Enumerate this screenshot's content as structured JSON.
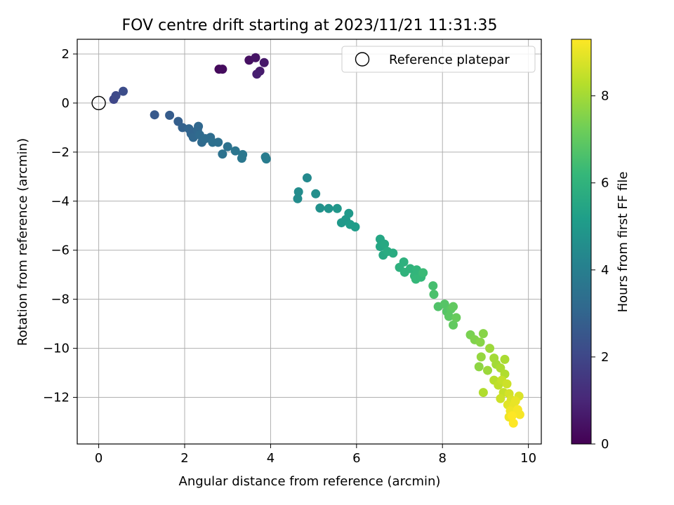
{
  "chart_data": {
    "type": "scatter",
    "title": "FOV centre drift starting at 2023/11/21 11:31:35",
    "xlabel": "Angular distance from reference (arcmin)",
    "ylabel": "Rotation from reference (arcmin)",
    "xlim": [
      -0.5,
      10.3
    ],
    "ylim": [
      -13.9,
      2.6
    ],
    "xticks": [
      0,
      2,
      4,
      6,
      8,
      10
    ],
    "yticks": [
      2,
      0,
      -2,
      -4,
      -6,
      -8,
      -10,
      -12
    ],
    "grid": true,
    "legend": {
      "position": "top-right",
      "label": "Reference platepar"
    },
    "reference_point": {
      "x": 0,
      "y": 0
    },
    "colorbar": {
      "label": "Hours from first FF file",
      "range": [
        0,
        9.3
      ],
      "ticks": [
        0,
        2,
        4,
        6,
        8
      ],
      "colormap": [
        "#440154",
        "#482878",
        "#3e4989",
        "#31688e",
        "#26828e",
        "#1f9e89",
        "#35b779",
        "#6ece58",
        "#b5de2b",
        "#fde725"
      ]
    },
    "points": [
      {
        "x": 2.8,
        "y": 1.38,
        "t": 0.2
      },
      {
        "x": 2.88,
        "y": 1.38,
        "t": 0.3
      },
      {
        "x": 3.5,
        "y": 1.75,
        "t": 0.4
      },
      {
        "x": 3.65,
        "y": 1.85,
        "t": 0.5
      },
      {
        "x": 3.85,
        "y": 1.65,
        "t": 0.6
      },
      {
        "x": 3.75,
        "y": 1.3,
        "t": 0.7
      },
      {
        "x": 3.68,
        "y": 1.18,
        "t": 0.8
      },
      {
        "x": 0.35,
        "y": 0.15,
        "t": 2.0
      },
      {
        "x": 0.4,
        "y": 0.3,
        "t": 2.1
      },
      {
        "x": 0.57,
        "y": 0.48,
        "t": 2.2
      },
      {
        "x": 1.3,
        "y": -0.48,
        "t": 2.6
      },
      {
        "x": 1.65,
        "y": -0.5,
        "t": 2.7
      },
      {
        "x": 1.85,
        "y": -0.75,
        "t": 2.8
      },
      {
        "x": 1.95,
        "y": -1.0,
        "t": 2.9
      },
      {
        "x": 2.1,
        "y": -1.05,
        "t": 3.0
      },
      {
        "x": 2.15,
        "y": -1.25,
        "t": 3.0
      },
      {
        "x": 2.2,
        "y": -1.4,
        "t": 3.1
      },
      {
        "x": 2.3,
        "y": -1.1,
        "t": 3.1
      },
      {
        "x": 2.32,
        "y": -0.95,
        "t": 3.1
      },
      {
        "x": 2.35,
        "y": -1.3,
        "t": 3.2
      },
      {
        "x": 2.4,
        "y": -1.6,
        "t": 3.2
      },
      {
        "x": 2.48,
        "y": -1.45,
        "t": 3.3
      },
      {
        "x": 2.6,
        "y": -1.4,
        "t": 3.3
      },
      {
        "x": 2.65,
        "y": -1.6,
        "t": 3.4
      },
      {
        "x": 2.78,
        "y": -1.6,
        "t": 3.4
      },
      {
        "x": 2.88,
        "y": -2.08,
        "t": 3.5
      },
      {
        "x": 3.0,
        "y": -1.78,
        "t": 3.5
      },
      {
        "x": 3.18,
        "y": -1.95,
        "t": 3.6
      },
      {
        "x": 3.35,
        "y": -2.1,
        "t": 3.7
      },
      {
        "x": 3.33,
        "y": -2.25,
        "t": 3.7
      },
      {
        "x": 3.88,
        "y": -2.2,
        "t": 3.9
      },
      {
        "x": 3.9,
        "y": -2.28,
        "t": 3.9
      },
      {
        "x": 4.85,
        "y": -3.05,
        "t": 4.4
      },
      {
        "x": 4.65,
        "y": -3.62,
        "t": 4.5
      },
      {
        "x": 4.63,
        "y": -3.9,
        "t": 4.5
      },
      {
        "x": 5.05,
        "y": -3.7,
        "t": 4.6
      },
      {
        "x": 5.15,
        "y": -4.28,
        "t": 4.7
      },
      {
        "x": 5.35,
        "y": -4.3,
        "t": 4.8
      },
      {
        "x": 5.55,
        "y": -4.3,
        "t": 4.9
      },
      {
        "x": 5.65,
        "y": -4.88,
        "t": 5.0
      },
      {
        "x": 5.75,
        "y": -4.75,
        "t": 5.0
      },
      {
        "x": 5.82,
        "y": -4.5,
        "t": 5.0
      },
      {
        "x": 5.85,
        "y": -4.95,
        "t": 5.1
      },
      {
        "x": 5.97,
        "y": -5.05,
        "t": 5.1
      },
      {
        "x": 6.55,
        "y": -5.55,
        "t": 5.5
      },
      {
        "x": 6.55,
        "y": -5.85,
        "t": 5.5
      },
      {
        "x": 6.65,
        "y": -5.75,
        "t": 5.6
      },
      {
        "x": 6.62,
        "y": -6.2,
        "t": 5.6
      },
      {
        "x": 6.72,
        "y": -6.05,
        "t": 5.7
      },
      {
        "x": 6.85,
        "y": -6.12,
        "t": 5.7
      },
      {
        "x": 7.0,
        "y": -6.7,
        "t": 5.9
      },
      {
        "x": 7.1,
        "y": -6.48,
        "t": 5.9
      },
      {
        "x": 7.12,
        "y": -6.9,
        "t": 6.0
      },
      {
        "x": 7.25,
        "y": -6.75,
        "t": 6.0
      },
      {
        "x": 7.35,
        "y": -7.05,
        "t": 6.1
      },
      {
        "x": 7.4,
        "y": -6.8,
        "t": 6.1
      },
      {
        "x": 7.38,
        "y": -7.18,
        "t": 6.2
      },
      {
        "x": 7.5,
        "y": -7.1,
        "t": 6.2
      },
      {
        "x": 7.55,
        "y": -6.92,
        "t": 6.3
      },
      {
        "x": 7.78,
        "y": -7.45,
        "t": 6.5
      },
      {
        "x": 7.8,
        "y": -7.8,
        "t": 6.6
      },
      {
        "x": 7.9,
        "y": -8.3,
        "t": 6.7
      },
      {
        "x": 8.05,
        "y": -8.2,
        "t": 6.8
      },
      {
        "x": 8.1,
        "y": -8.5,
        "t": 6.8
      },
      {
        "x": 8.15,
        "y": -8.7,
        "t": 6.9
      },
      {
        "x": 8.2,
        "y": -8.4,
        "t": 6.9
      },
      {
        "x": 8.25,
        "y": -8.3,
        "t": 7.0
      },
      {
        "x": 8.25,
        "y": -9.05,
        "t": 7.0
      },
      {
        "x": 8.32,
        "y": -8.75,
        "t": 7.1
      },
      {
        "x": 8.65,
        "y": -9.45,
        "t": 7.4
      },
      {
        "x": 8.75,
        "y": -9.65,
        "t": 7.5
      },
      {
        "x": 8.88,
        "y": -9.75,
        "t": 7.6
      },
      {
        "x": 8.95,
        "y": -9.4,
        "t": 7.6
      },
      {
        "x": 8.85,
        "y": -10.75,
        "t": 7.7
      },
      {
        "x": 8.9,
        "y": -10.35,
        "t": 7.8
      },
      {
        "x": 9.05,
        "y": -10.9,
        "t": 7.9
      },
      {
        "x": 9.1,
        "y": -10.0,
        "t": 7.9
      },
      {
        "x": 9.2,
        "y": -10.4,
        "t": 8.0
      },
      {
        "x": 9.25,
        "y": -10.65,
        "t": 8.0
      },
      {
        "x": 9.35,
        "y": -10.8,
        "t": 8.1
      },
      {
        "x": 9.45,
        "y": -10.45,
        "t": 8.1
      },
      {
        "x": 9.45,
        "y": -11.05,
        "t": 8.2
      },
      {
        "x": 8.95,
        "y": -11.8,
        "t": 8.2
      },
      {
        "x": 9.2,
        "y": -11.3,
        "t": 8.3
      },
      {
        "x": 9.3,
        "y": -11.5,
        "t": 8.4
      },
      {
        "x": 9.38,
        "y": -11.3,
        "t": 8.5
      },
      {
        "x": 9.42,
        "y": -11.8,
        "t": 8.5
      },
      {
        "x": 9.35,
        "y": -12.05,
        "t": 8.6
      },
      {
        "x": 9.5,
        "y": -11.45,
        "t": 8.6
      },
      {
        "x": 9.55,
        "y": -11.85,
        "t": 8.7
      },
      {
        "x": 9.6,
        "y": -12.1,
        "t": 8.8
      },
      {
        "x": 9.52,
        "y": -12.3,
        "t": 8.9
      },
      {
        "x": 9.65,
        "y": -12.35,
        "t": 9.0
      },
      {
        "x": 9.7,
        "y": -12.15,
        "t": 9.0
      },
      {
        "x": 9.58,
        "y": -12.55,
        "t": 9.1
      },
      {
        "x": 9.55,
        "y": -12.8,
        "t": 9.1
      },
      {
        "x": 9.75,
        "y": -12.5,
        "t": 9.2
      },
      {
        "x": 9.8,
        "y": -12.7,
        "t": 9.2
      },
      {
        "x": 9.65,
        "y": -13.05,
        "t": 9.3
      },
      {
        "x": 9.78,
        "y": -11.95,
        "t": 8.8
      },
      {
        "x": 9.62,
        "y": -12.75,
        "t": 9.3
      }
    ]
  }
}
